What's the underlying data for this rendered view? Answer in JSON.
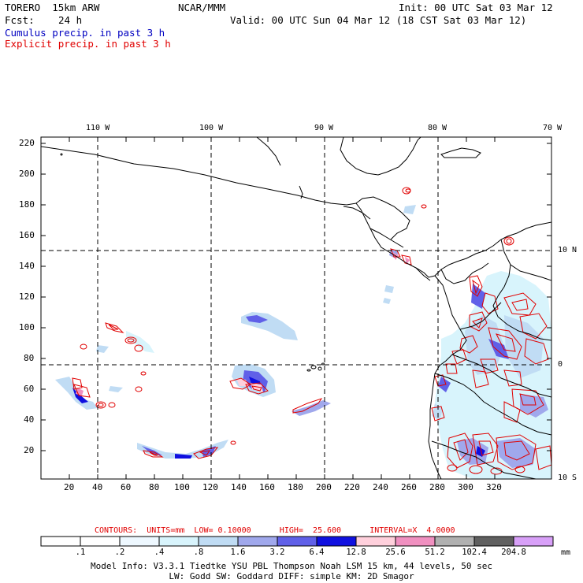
{
  "header": {
    "model": "TORERO  15km ARW",
    "org": "NCAR/MMM",
    "init": "Init: 00 UTC Sat 03 Mar 12",
    "fcst_label": "Fcst:",
    "fcst_value": "24 h",
    "valid": "Valid: 00 UTC Sun 04 Mar 12 (18 CST Sat 03 Mar 12)",
    "cumulus": "Cumulus precip. in past 3 h",
    "explicit": "Explicit precip. in past 3 h"
  },
  "colors": {
    "cumulus": "#0000c0",
    "explicit": "#e00000",
    "grid": "#000000"
  },
  "map": {
    "x_ticks": [
      "20",
      "40",
      "60",
      "80",
      "100",
      "120",
      "140",
      "160",
      "180",
      "200",
      "220",
      "240",
      "260",
      "280",
      "300",
      "320"
    ],
    "y_ticks": [
      "20",
      "40",
      "60",
      "80",
      "100",
      "120",
      "140",
      "160",
      "180",
      "200",
      "220"
    ],
    "lon_labels": [
      "110 W",
      "100 W",
      "90 W",
      "80 W",
      "70 W"
    ],
    "lat_labels": [
      "10 N",
      "0",
      "10 S"
    ]
  },
  "contours": {
    "label": "CONTOURS:  UNITS=mm  LOW= 0.10000      HIGH=  25.600      INTERVAL=X  4.0000"
  },
  "colorbar": {
    "unit": "mm",
    "levels": [
      ".1",
      ".2",
      ".4",
      ".8",
      "1.6",
      "3.2",
      "6.4",
      "12.8",
      "25.6",
      "51.2",
      "102.4",
      "204.8"
    ],
    "colors": [
      "#ffffff",
      "#ffffff",
      "#eef8ff",
      "#d8f4fc",
      "#c0dcf4",
      "#a0a8ec",
      "#6060e8",
      "#1010e0",
      "#ffd0dc",
      "#f090c0",
      "#b0b0b0",
      "#606060",
      "#d8a0f8"
    ]
  },
  "footer": {
    "line1": "Model Info: V3.3.1   Tiedtke YSU PBL  Thompson    Noah LSM  15 km,   44 levels,   50 sec",
    "line2": "LW: Godd SW: Goddard DIFF: simple KM: 2D Smagor"
  }
}
